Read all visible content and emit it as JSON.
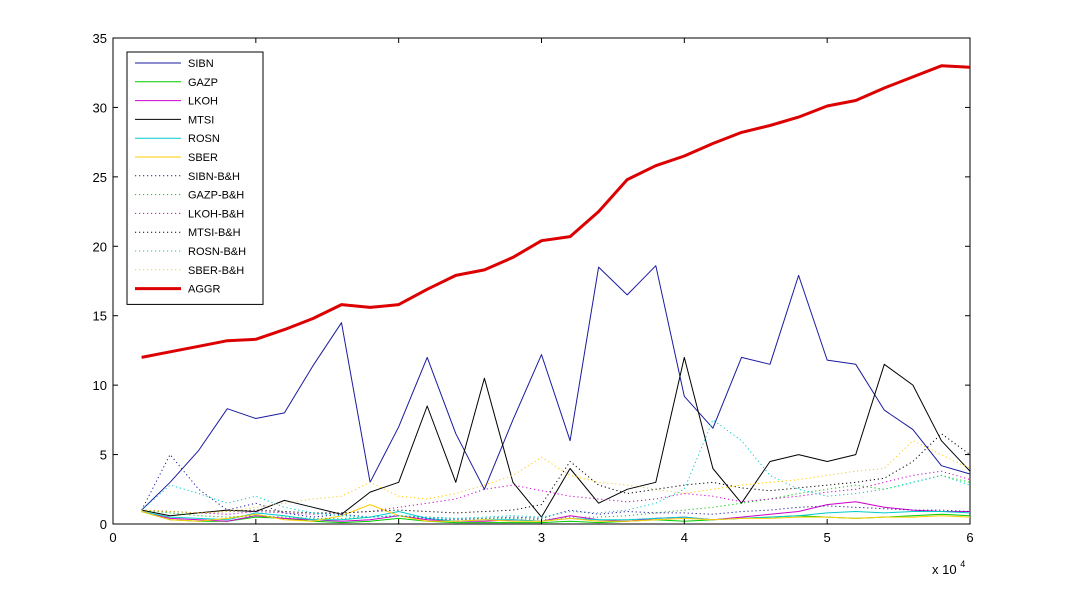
{
  "chart_data": {
    "type": "line",
    "x_multiplier_label": {
      "prefix": "x 10",
      "exponent": "4"
    },
    "xlim": [
      0,
      60000
    ],
    "ylim": [
      0,
      35
    ],
    "xticks": [
      0,
      10000,
      20000,
      30000,
      40000,
      50000,
      60000
    ],
    "xtick_labels": [
      "0",
      "1",
      "2",
      "3",
      "4",
      "5",
      "6"
    ],
    "yticks": [
      0,
      5,
      10,
      15,
      20,
      25,
      30,
      35
    ],
    "ytick_labels": [
      "0",
      "5",
      "10",
      "15",
      "20",
      "25",
      "30",
      "35"
    ],
    "grid": false,
    "legend_position": "top-left",
    "x": [
      2000,
      4000,
      6000,
      8000,
      10000,
      12000,
      14000,
      16000,
      18000,
      20000,
      22000,
      24000,
      26000,
      28000,
      30000,
      32000,
      34000,
      36000,
      38000,
      40000,
      42000,
      44000,
      46000,
      48000,
      50000,
      52000,
      54000,
      56000,
      58000,
      60000
    ],
    "series": [
      {
        "name": "SIBN",
        "color": "#1a1a9e",
        "style": "solid",
        "width": 1,
        "values": [
          1.0,
          3.0,
          5.3,
          8.3,
          7.6,
          8.0,
          11.4,
          14.5,
          3.0,
          7.0,
          12.0,
          6.5,
          2.5,
          7.5,
          12.2,
          6.0,
          18.5,
          16.5,
          18.6,
          9.2,
          6.9,
          12.0,
          11.5,
          17.9,
          11.8,
          11.5,
          8.2,
          6.8,
          4.2,
          3.6
        ]
      },
      {
        "name": "GAZP",
        "color": "#00cc00",
        "style": "solid",
        "width": 1,
        "values": [
          0.9,
          0.3,
          0.2,
          0.2,
          0.5,
          0.4,
          0.2,
          0.1,
          0.2,
          0.4,
          0.2,
          0.1,
          0.1,
          0.1,
          0.1,
          0.2,
          0.1,
          0.2,
          0.3,
          0.2,
          0.3,
          0.4,
          0.5,
          0.6,
          0.5,
          0.4,
          0.5,
          0.6,
          0.7,
          0.6
        ]
      },
      {
        "name": "LKOH",
        "color": "#cc00cc",
        "style": "solid",
        "width": 1,
        "values": [
          0.9,
          0.4,
          0.3,
          0.2,
          0.6,
          0.4,
          0.3,
          0.2,
          0.3,
          0.6,
          0.3,
          0.2,
          0.2,
          0.3,
          0.2,
          0.6,
          0.3,
          0.2,
          0.4,
          0.5,
          0.3,
          0.5,
          0.7,
          0.9,
          1.4,
          1.6,
          1.2,
          1.0,
          0.9,
          0.9
        ]
      },
      {
        "name": "MTSI",
        "color": "#000000",
        "style": "solid",
        "width": 1,
        "values": [
          1.0,
          0.6,
          0.8,
          1.0,
          0.9,
          1.7,
          1.2,
          0.7,
          2.3,
          3.0,
          8.5,
          3.0,
          10.5,
          3.0,
          0.5,
          4.0,
          1.5,
          2.5,
          3.0,
          12.0,
          4.0,
          1.5,
          4.5,
          5.0,
          4.5,
          5.0,
          11.5,
          10.0,
          6.0,
          3.8
        ]
      },
      {
        "name": "ROSN",
        "color": "#00cccc",
        "style": "solid",
        "width": 1,
        "values": [
          0.9,
          0.5,
          0.4,
          0.3,
          0.8,
          0.6,
          0.3,
          0.3,
          0.5,
          0.9,
          0.4,
          0.2,
          0.3,
          0.3,
          0.2,
          0.4,
          0.3,
          0.3,
          0.4,
          0.5,
          0.3,
          0.4,
          0.5,
          0.6,
          0.8,
          0.9,
          0.8,
          0.9,
          0.9,
          0.8
        ]
      },
      {
        "name": "SBER",
        "color": "#ffcc00",
        "style": "solid",
        "width": 1,
        "values": [
          0.9,
          0.3,
          0.2,
          0.4,
          0.7,
          0.3,
          0.2,
          0.6,
          1.4,
          0.6,
          0.2,
          0.2,
          0.3,
          0.2,
          0.2,
          0.4,
          0.2,
          0.2,
          0.3,
          0.4,
          0.3,
          0.4,
          0.4,
          0.5,
          0.5,
          0.4,
          0.5,
          0.5,
          0.6,
          0.5
        ]
      },
      {
        "name": "SIBN-B&H",
        "color": "#1a1a9e",
        "style": "dotted",
        "width": 1,
        "values": [
          1.0,
          5.0,
          2.5,
          1.0,
          1.5,
          0.8,
          0.5,
          0.7,
          0.5,
          0.6,
          0.4,
          0.3,
          0.4,
          0.5,
          0.4,
          1.0,
          0.7,
          0.9,
          0.8,
          0.8,
          0.7,
          0.9,
          1.0,
          1.2,
          1.3,
          1.2,
          1.1,
          1.0,
          1.0,
          0.9
        ]
      },
      {
        "name": "GAZP-B&H",
        "color": "#00cc00",
        "style": "dotted",
        "width": 1,
        "values": [
          1.0,
          0.8,
          0.6,
          0.5,
          0.6,
          0.5,
          0.4,
          0.4,
          0.5,
          0.6,
          0.5,
          0.4,
          0.4,
          0.4,
          0.3,
          0.5,
          0.5,
          0.6,
          0.8,
          1.0,
          1.2,
          1.5,
          1.8,
          2.2,
          2.5,
          2.8,
          2.5,
          3.0,
          3.5,
          3.0
        ]
      },
      {
        "name": "LKOH-B&H",
        "color": "#cc00cc",
        "style": "dotted",
        "width": 1,
        "values": [
          1.0,
          0.9,
          0.8,
          0.7,
          0.9,
          0.8,
          0.7,
          0.8,
          0.9,
          1.2,
          1.5,
          1.8,
          2.5,
          2.8,
          2.4,
          2.0,
          1.8,
          1.6,
          1.8,
          2.2,
          2.0,
          1.6,
          1.8,
          2.0,
          2.3,
          2.5,
          3.0,
          3.5,
          3.8,
          3.2
        ]
      },
      {
        "name": "MTSI-B&H",
        "color": "#000000",
        "style": "dotted",
        "width": 1,
        "values": [
          1.0,
          0.9,
          0.8,
          0.9,
          1.0,
          0.9,
          0.8,
          0.8,
          0.9,
          1.0,
          0.9,
          0.8,
          0.9,
          1.0,
          1.4,
          4.5,
          2.8,
          2.2,
          2.5,
          2.8,
          3.0,
          2.6,
          2.4,
          2.6,
          2.8,
          3.0,
          3.3,
          4.5,
          6.5,
          5.0
        ]
      },
      {
        "name": "ROSN-B&H",
        "color": "#00cccc",
        "style": "dotted",
        "width": 1,
        "values": [
          1.0,
          2.8,
          2.2,
          1.5,
          2.0,
          1.2,
          0.8,
          0.6,
          0.5,
          0.6,
          0.5,
          0.4,
          0.5,
          0.6,
          0.5,
          0.9,
          0.8,
          1.0,
          1.5,
          2.5,
          7.5,
          6.0,
          3.5,
          2.5,
          2.0,
          2.2,
          2.5,
          3.0,
          3.5,
          2.8
        ]
      },
      {
        "name": "SBER-B&H",
        "color": "#ffcc00",
        "style": "dotted",
        "width": 1,
        "values": [
          1.0,
          0.9,
          0.8,
          0.9,
          1.2,
          1.5,
          1.8,
          2.0,
          3.0,
          2.0,
          1.8,
          2.2,
          2.8,
          3.5,
          4.8,
          3.5,
          3.0,
          2.8,
          2.5,
          2.2,
          2.5,
          2.8,
          3.0,
          3.2,
          3.5,
          3.8,
          4.0,
          6.0,
          5.0,
          4.0
        ]
      },
      {
        "name": "AGGR",
        "color": "#dd0000",
        "style": "solid",
        "width": 3,
        "values": [
          12.0,
          12.4,
          12.8,
          13.2,
          13.3,
          14.0,
          14.8,
          15.8,
          15.6,
          15.8,
          16.9,
          17.9,
          18.3,
          19.2,
          20.4,
          20.7,
          22.5,
          24.8,
          25.8,
          26.5,
          27.4,
          28.2,
          28.7,
          29.3,
          30.1,
          30.5,
          31.4,
          32.2,
          33.0,
          32.9
        ]
      }
    ]
  }
}
